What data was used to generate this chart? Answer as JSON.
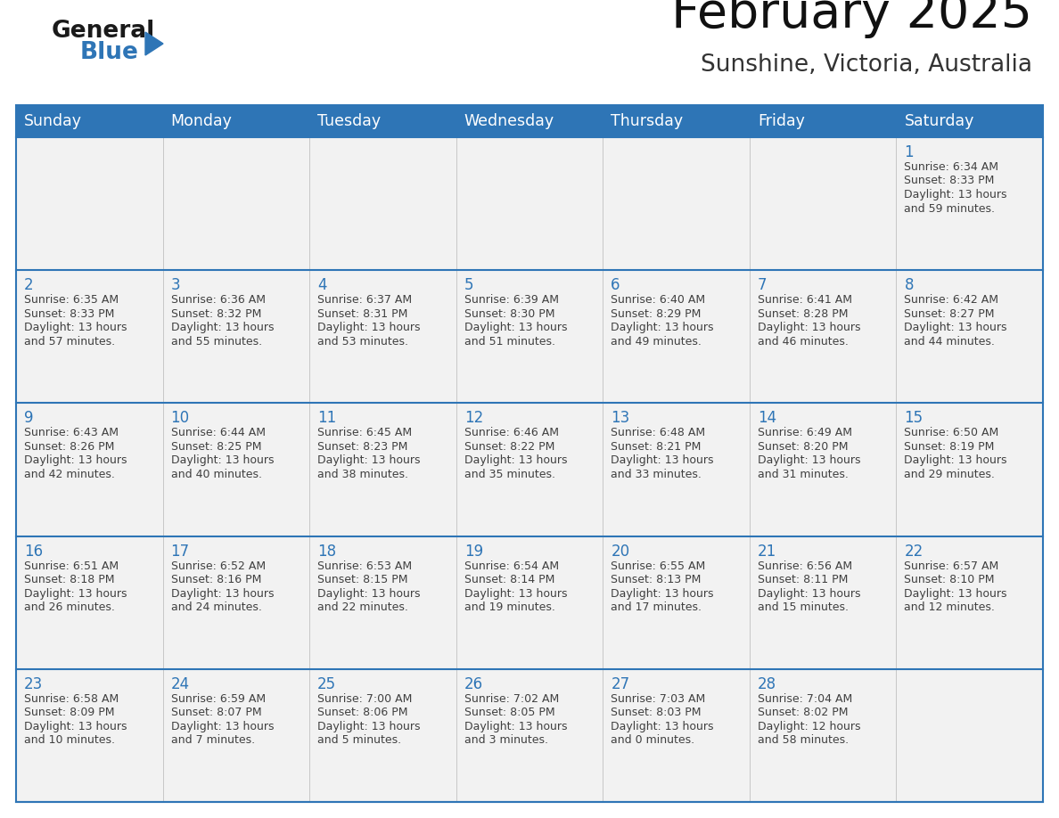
{
  "title": "February 2025",
  "subtitle": "Sunshine, Victoria, Australia",
  "header_bg": "#2E75B6",
  "header_text_color": "#FFFFFF",
  "cell_bg": "#F2F2F2",
  "text_color": "#404040",
  "day_number_color": "#2E75B6",
  "line_color": "#2E75B6",
  "border_color": "#AAAAAA",
  "days_of_week": [
    "Sunday",
    "Monday",
    "Tuesday",
    "Wednesday",
    "Thursday",
    "Friday",
    "Saturday"
  ],
  "logo_general_color": "#1a1a1a",
  "logo_blue_color": "#2E75B6",
  "calendar_data": [
    [
      null,
      null,
      null,
      null,
      null,
      null,
      {
        "day": "1",
        "sunrise": "6:34 AM",
        "sunset": "8:33 PM",
        "daylight_h": "13 hours",
        "daylight_m": "and 59 minutes."
      }
    ],
    [
      {
        "day": "2",
        "sunrise": "6:35 AM",
        "sunset": "8:33 PM",
        "daylight_h": "13 hours",
        "daylight_m": "and 57 minutes."
      },
      {
        "day": "3",
        "sunrise": "6:36 AM",
        "sunset": "8:32 PM",
        "daylight_h": "13 hours",
        "daylight_m": "and 55 minutes."
      },
      {
        "day": "4",
        "sunrise": "6:37 AM",
        "sunset": "8:31 PM",
        "daylight_h": "13 hours",
        "daylight_m": "and 53 minutes."
      },
      {
        "day": "5",
        "sunrise": "6:39 AM",
        "sunset": "8:30 PM",
        "daylight_h": "13 hours",
        "daylight_m": "and 51 minutes."
      },
      {
        "day": "6",
        "sunrise": "6:40 AM",
        "sunset": "8:29 PM",
        "daylight_h": "13 hours",
        "daylight_m": "and 49 minutes."
      },
      {
        "day": "7",
        "sunrise": "6:41 AM",
        "sunset": "8:28 PM",
        "daylight_h": "13 hours",
        "daylight_m": "and 46 minutes."
      },
      {
        "day": "8",
        "sunrise": "6:42 AM",
        "sunset": "8:27 PM",
        "daylight_h": "13 hours",
        "daylight_m": "and 44 minutes."
      }
    ],
    [
      {
        "day": "9",
        "sunrise": "6:43 AM",
        "sunset": "8:26 PM",
        "daylight_h": "13 hours",
        "daylight_m": "and 42 minutes."
      },
      {
        "day": "10",
        "sunrise": "6:44 AM",
        "sunset": "8:25 PM",
        "daylight_h": "13 hours",
        "daylight_m": "and 40 minutes."
      },
      {
        "day": "11",
        "sunrise": "6:45 AM",
        "sunset": "8:23 PM",
        "daylight_h": "13 hours",
        "daylight_m": "and 38 minutes."
      },
      {
        "day": "12",
        "sunrise": "6:46 AM",
        "sunset": "8:22 PM",
        "daylight_h": "13 hours",
        "daylight_m": "and 35 minutes."
      },
      {
        "day": "13",
        "sunrise": "6:48 AM",
        "sunset": "8:21 PM",
        "daylight_h": "13 hours",
        "daylight_m": "and 33 minutes."
      },
      {
        "day": "14",
        "sunrise": "6:49 AM",
        "sunset": "8:20 PM",
        "daylight_h": "13 hours",
        "daylight_m": "and 31 minutes."
      },
      {
        "day": "15",
        "sunrise": "6:50 AM",
        "sunset": "8:19 PM",
        "daylight_h": "13 hours",
        "daylight_m": "and 29 minutes."
      }
    ],
    [
      {
        "day": "16",
        "sunrise": "6:51 AM",
        "sunset": "8:18 PM",
        "daylight_h": "13 hours",
        "daylight_m": "and 26 minutes."
      },
      {
        "day": "17",
        "sunrise": "6:52 AM",
        "sunset": "8:16 PM",
        "daylight_h": "13 hours",
        "daylight_m": "and 24 minutes."
      },
      {
        "day": "18",
        "sunrise": "6:53 AM",
        "sunset": "8:15 PM",
        "daylight_h": "13 hours",
        "daylight_m": "and 22 minutes."
      },
      {
        "day": "19",
        "sunrise": "6:54 AM",
        "sunset": "8:14 PM",
        "daylight_h": "13 hours",
        "daylight_m": "and 19 minutes."
      },
      {
        "day": "20",
        "sunrise": "6:55 AM",
        "sunset": "8:13 PM",
        "daylight_h": "13 hours",
        "daylight_m": "and 17 minutes."
      },
      {
        "day": "21",
        "sunrise": "6:56 AM",
        "sunset": "8:11 PM",
        "daylight_h": "13 hours",
        "daylight_m": "and 15 minutes."
      },
      {
        "day": "22",
        "sunrise": "6:57 AM",
        "sunset": "8:10 PM",
        "daylight_h": "13 hours",
        "daylight_m": "and 12 minutes."
      }
    ],
    [
      {
        "day": "23",
        "sunrise": "6:58 AM",
        "sunset": "8:09 PM",
        "daylight_h": "13 hours",
        "daylight_m": "and 10 minutes."
      },
      {
        "day": "24",
        "sunrise": "6:59 AM",
        "sunset": "8:07 PM",
        "daylight_h": "13 hours",
        "daylight_m": "and 7 minutes."
      },
      {
        "day": "25",
        "sunrise": "7:00 AM",
        "sunset": "8:06 PM",
        "daylight_h": "13 hours",
        "daylight_m": "and 5 minutes."
      },
      {
        "day": "26",
        "sunrise": "7:02 AM",
        "sunset": "8:05 PM",
        "daylight_h": "13 hours",
        "daylight_m": "and 3 minutes."
      },
      {
        "day": "27",
        "sunrise": "7:03 AM",
        "sunset": "8:03 PM",
        "daylight_h": "13 hours",
        "daylight_m": "and 0 minutes."
      },
      {
        "day": "28",
        "sunrise": "7:04 AM",
        "sunset": "8:02 PM",
        "daylight_h": "12 hours",
        "daylight_m": "and 58 minutes."
      },
      null
    ]
  ]
}
